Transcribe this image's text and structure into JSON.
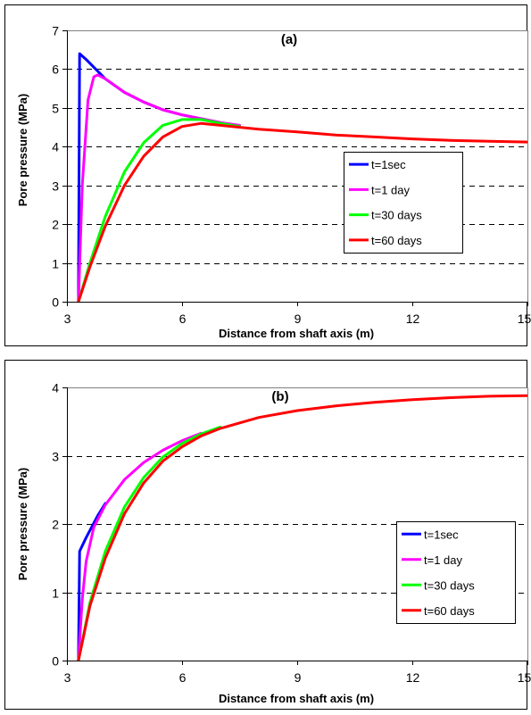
{
  "chart_data": [
    {
      "type": "line",
      "title": "(a)",
      "xlabel": "Distance from shaft axis (m)",
      "ylabel": "Pore pressure  (MPa)",
      "xlim": [
        3,
        15
      ],
      "ylim": [
        0,
        7
      ],
      "xticks": [
        "3",
        "6",
        "9",
        "12",
        "15"
      ],
      "yticks": [
        "0",
        "1",
        "2",
        "3",
        "4",
        "5",
        "6",
        "7"
      ],
      "grid": "horizontal dashed",
      "legend_position": "center-right",
      "series": [
        {
          "name": "t=1sec",
          "color": "#0000ff",
          "points": [
            [
              3.3,
              0
            ],
            [
              3.33,
              6.4
            ],
            [
              3.5,
              6.25
            ],
            [
              4.0,
              5.75
            ],
            [
              4.5,
              5.4
            ],
            [
              5.0,
              5.15
            ],
            [
              5.5,
              4.95
            ],
            [
              6.0,
              4.82
            ],
            [
              6.5,
              4.72
            ],
            [
              7.0,
              4.62
            ]
          ]
        },
        {
          "name": "t=1 day",
          "color": "#ff00ff",
          "points": [
            [
              3.3,
              0
            ],
            [
              3.4,
              3.0
            ],
            [
              3.55,
              5.2
            ],
            [
              3.7,
              5.8
            ],
            [
              3.8,
              5.85
            ],
            [
              4.0,
              5.75
            ],
            [
              4.5,
              5.4
            ],
            [
              5.0,
              5.15
            ],
            [
              5.5,
              4.95
            ],
            [
              6.0,
              4.82
            ],
            [
              6.5,
              4.72
            ],
            [
              7.0,
              4.62
            ],
            [
              7.5,
              4.55
            ]
          ]
        },
        {
          "name": "t=30 days",
          "color": "#00ff00",
          "points": [
            [
              3.3,
              0
            ],
            [
              3.6,
              1.0
            ],
            [
              4.0,
              2.2
            ],
            [
              4.5,
              3.35
            ],
            [
              5.0,
              4.1
            ],
            [
              5.5,
              4.55
            ],
            [
              6.0,
              4.7
            ],
            [
              6.5,
              4.7
            ],
            [
              7.0,
              4.6
            ],
            [
              7.5,
              4.52
            ]
          ]
        },
        {
          "name": "t=60 days",
          "color": "#ff0000",
          "points": [
            [
              3.3,
              0
            ],
            [
              3.6,
              0.9
            ],
            [
              4.0,
              1.95
            ],
            [
              4.5,
              3.0
            ],
            [
              5.0,
              3.75
            ],
            [
              5.5,
              4.25
            ],
            [
              6.0,
              4.52
            ],
            [
              6.5,
              4.6
            ],
            [
              7.0,
              4.55
            ],
            [
              8.0,
              4.45
            ],
            [
              9.0,
              4.38
            ],
            [
              10.0,
              4.3
            ],
            [
              11.0,
              4.25
            ],
            [
              12.0,
              4.2
            ],
            [
              13.0,
              4.16
            ],
            [
              14.0,
              4.14
            ],
            [
              15.0,
              4.12
            ]
          ]
        }
      ]
    },
    {
      "type": "line",
      "title": "(b)",
      "xlabel": "Distance from shaft axis (m)",
      "ylabel": "Pore pressure (MPa)",
      "xlim": [
        3,
        15
      ],
      "ylim": [
        0,
        4
      ],
      "xticks": [
        "3",
        "6",
        "9",
        "12",
        "15"
      ],
      "yticks": [
        "0",
        "1",
        "2",
        "3",
        "4"
      ],
      "grid": "horizontal dashed",
      "legend_position": "right",
      "series": [
        {
          "name": "t=1sec",
          "color": "#0000ff",
          "points": [
            [
              3.3,
              0
            ],
            [
              3.33,
              1.6
            ],
            [
              3.5,
              1.8
            ],
            [
              3.8,
              2.12
            ],
            [
              4.0,
              2.3
            ]
          ]
        },
        {
          "name": "t=1 day",
          "color": "#ff00ff",
          "points": [
            [
              3.3,
              0
            ],
            [
              3.4,
              0.9
            ],
            [
              3.5,
              1.45
            ],
            [
              3.7,
              1.95
            ],
            [
              4.0,
              2.28
            ],
            [
              4.5,
              2.65
            ],
            [
              5.0,
              2.9
            ],
            [
              5.5,
              3.08
            ],
            [
              6.0,
              3.22
            ],
            [
              6.5,
              3.33
            ]
          ]
        },
        {
          "name": "t=30 days",
          "color": "#00ff00",
          "points": [
            [
              3.3,
              0
            ],
            [
              3.6,
              0.85
            ],
            [
              4.0,
              1.6
            ],
            [
              4.5,
              2.25
            ],
            [
              5.0,
              2.68
            ],
            [
              5.5,
              2.98
            ],
            [
              6.0,
              3.18
            ],
            [
              6.5,
              3.32
            ],
            [
              7.0,
              3.42
            ]
          ]
        },
        {
          "name": "t=60 days",
          "color": "#ff0000",
          "points": [
            [
              3.3,
              0
            ],
            [
              3.6,
              0.8
            ],
            [
              4.0,
              1.5
            ],
            [
              4.5,
              2.15
            ],
            [
              5.0,
              2.6
            ],
            [
              5.5,
              2.92
            ],
            [
              6.0,
              3.13
            ],
            [
              6.5,
              3.29
            ],
            [
              7.0,
              3.4
            ],
            [
              8.0,
              3.56
            ],
            [
              9.0,
              3.66
            ],
            [
              10.0,
              3.73
            ],
            [
              11.0,
              3.78
            ],
            [
              12.0,
              3.82
            ],
            [
              13.0,
              3.85
            ],
            [
              14.0,
              3.87
            ],
            [
              15.0,
              3.88
            ]
          ]
        }
      ]
    }
  ]
}
